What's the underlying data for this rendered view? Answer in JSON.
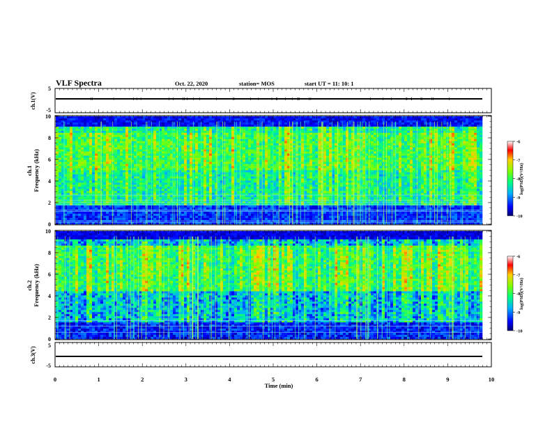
{
  "header": {
    "title": "VLF Spectra",
    "date": "Oct. 22, 2020",
    "station": "station= MOS",
    "start_ut": "start  UT  =    11: 10: 1"
  },
  "chart_data": [
    {
      "type": "line",
      "ylabel": "ch.1(V)",
      "ylim": [
        -5,
        5
      ],
      "yticks": [
        "5",
        "-5"
      ],
      "x": [
        0,
        9.8
      ],
      "values": [
        0,
        0
      ]
    },
    {
      "type": "heatmap",
      "ylabel_1": "ch.1",
      "ylabel_2": "Frequency (kHz)",
      "ylim": [
        0,
        10
      ],
      "yticks": [
        "0",
        "2",
        "4",
        "6",
        "8",
        "10"
      ],
      "colorbar": {
        "label": "log(PSD)(V²/Hz)",
        "range": [
          -10,
          -6
        ],
        "ticks": [
          "-6",
          "-7",
          "-8",
          "-9",
          "-10"
        ]
      }
    },
    {
      "type": "heatmap",
      "ylabel_1": "ch.2",
      "ylabel_2": "Frequency (kHz)",
      "ylim": [
        0,
        10
      ],
      "yticks": [
        "0",
        "2",
        "4",
        "6",
        "8",
        "10"
      ],
      "colorbar": {
        "label": "log(PSD)(V²/Hz)",
        "range": [
          -10,
          -6
        ],
        "ticks": [
          "-6",
          "-7",
          "-8",
          "-9",
          "-10"
        ]
      }
    },
    {
      "type": "line",
      "ylabel": "ch.3(V)",
      "ylim": [
        -5,
        5
      ],
      "yticks": [
        "5",
        "-5"
      ],
      "x": [
        0,
        9.8
      ],
      "values": [
        0,
        0
      ]
    }
  ],
  "x_axis": {
    "label": "Time  (min)",
    "xlim": [
      0,
      10
    ],
    "ticks": [
      "0",
      "1",
      "2",
      "3",
      "4",
      "5",
      "6",
      "7",
      "8",
      "9",
      "10"
    ]
  }
}
